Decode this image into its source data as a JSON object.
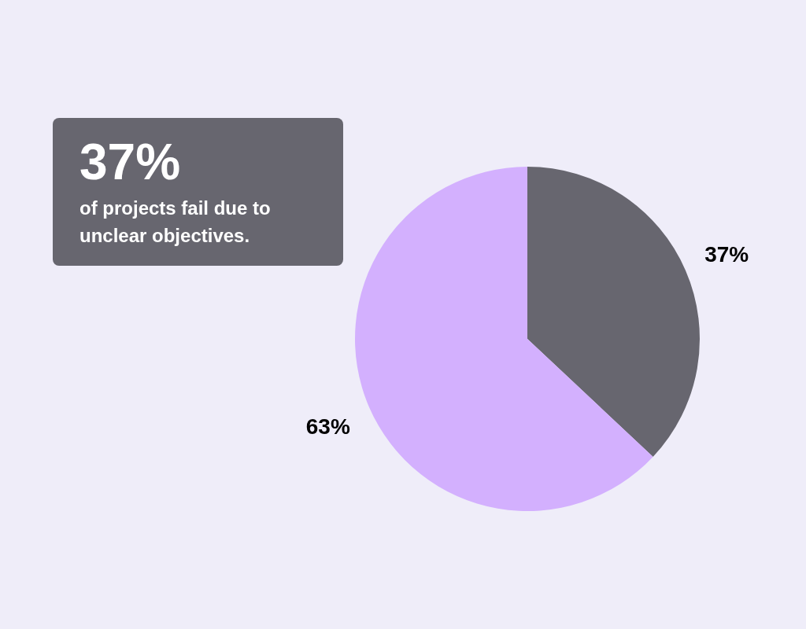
{
  "chart_data": {
    "type": "pie",
    "title": "37%",
    "subtitle": "of projects fail due to unclear objectives.",
    "categories": [
      null,
      null
    ],
    "values": [
      37,
      63
    ],
    "colors": [
      "#67666f",
      "#d3b0fe"
    ],
    "value_labels": [
      "37%",
      "63%"
    ]
  }
}
